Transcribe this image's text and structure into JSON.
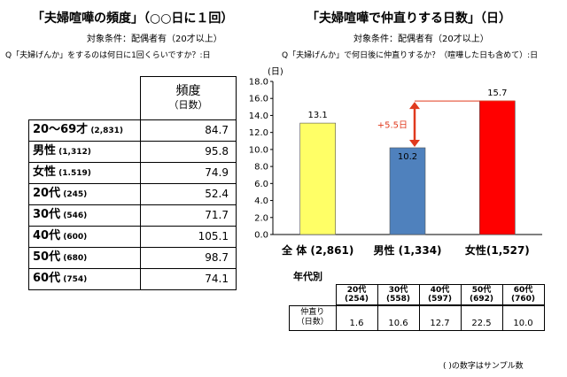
{
  "left": {
    "title": "「夫婦喧嘩の頻度」（○○日に１回）",
    "condition": "対象条件：配偶者有（20才以上）",
    "question": "Q「夫婦げんか」をするのは何日に1回くらいですか？:日",
    "header_main": "頻度",
    "header_unit": "（日数）",
    "rows": [
      {
        "label": "20～69才",
        "n": "(2,831)",
        "value": "84.7"
      },
      {
        "label": "男性",
        "n": "(1,312)",
        "value": "95.8"
      },
      {
        "label": "女性",
        "n": "(1.519)",
        "value": "74.9"
      },
      {
        "label": "20代",
        "n": "(245)",
        "value": "52.4"
      },
      {
        "label": "30代",
        "n": "(546)",
        "value": "71.7"
      },
      {
        "label": "40代",
        "n": "(600)",
        "value": "105.1"
      },
      {
        "label": "50代",
        "n": "(680)",
        "value": "98.7"
      },
      {
        "label": "60代",
        "n": "(754)",
        "value": "74.1"
      }
    ]
  },
  "right": {
    "title": "「夫婦喧嘩で仲直りする日数」（日）",
    "condition": "対象条件：配偶者有（20才以上）",
    "question": "Q「夫婦げんか」で何日後に仲直りするか？（喧嘩した日も含めて）:日",
    "diff_label": "+5.5日",
    "age_section_label": "年代別",
    "age_row_label_1": "仲直り",
    "age_row_label_2": "（日数）",
    "age_cols": [
      {
        "label": "20代",
        "n": "(254)",
        "value": "1.6"
      },
      {
        "label": "30代",
        "n": "(558)",
        "value": "10.6"
      },
      {
        "label": "40代",
        "n": "(597)",
        "value": "12.7"
      },
      {
        "label": "50代",
        "n": "(692)",
        "value": "22.5"
      },
      {
        "label": "60代",
        "n": "(760)",
        "value": "10.0"
      }
    ],
    "footnote": "(  )の数字はサンプル数"
  },
  "chart_data": {
    "type": "bar",
    "ylabel": "(日)",
    "ylim": [
      0,
      18
    ],
    "yticks": [
      "0.0",
      "2.0",
      "4.0",
      "6.0",
      "8.0",
      "10.0",
      "12.0",
      "14.0",
      "16.0",
      "18.0"
    ],
    "categories": [
      "全 体 (2,861)",
      "男性 (1,334)",
      "女性(1,527)"
    ],
    "values": [
      13.1,
      10.2,
      15.7
    ],
    "value_labels": [
      "13.1",
      "10.2",
      "15.7"
    ],
    "colors": [
      "#ffff66",
      "#4f81bd",
      "#ff0000"
    ],
    "annotation_color": "#e03a1e"
  }
}
